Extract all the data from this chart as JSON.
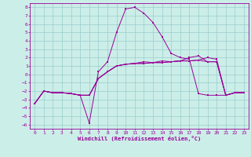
{
  "xlabel": "Windchill (Refroidissement éolien,°C)",
  "bg_color": "#cceee8",
  "grid_color": "#99cccc",
  "line_color": "#990099",
  "xlim": [
    -0.5,
    23.5
  ],
  "ylim": [
    -6.5,
    8.5
  ],
  "xticks": [
    0,
    1,
    2,
    3,
    4,
    5,
    6,
    7,
    8,
    9,
    10,
    11,
    12,
    13,
    14,
    15,
    16,
    17,
    18,
    19,
    20,
    21,
    22,
    23
  ],
  "yticks": [
    -6,
    -5,
    -4,
    -3,
    -2,
    -1,
    0,
    1,
    2,
    3,
    4,
    5,
    6,
    7,
    8
  ],
  "line1_x": [
    0,
    1,
    2,
    3,
    4,
    5,
    6,
    7,
    8,
    9,
    10,
    11,
    12,
    13,
    14,
    15,
    16,
    17,
    18,
    19,
    20,
    21,
    22,
    23
  ],
  "line1_y": [
    -3.5,
    -2.0,
    -2.2,
    -2.2,
    -2.3,
    -2.5,
    -2.5,
    -0.5,
    0.3,
    1.0,
    1.2,
    1.3,
    1.3,
    1.4,
    1.4,
    1.5,
    1.6,
    1.6,
    1.7,
    1.5,
    1.5,
    -2.5,
    -2.2,
    -2.2
  ],
  "line2_x": [
    0,
    1,
    2,
    3,
    4,
    5,
    6,
    7,
    8,
    9,
    10,
    11,
    12,
    13,
    14,
    15,
    16,
    17,
    18,
    19,
    20,
    21,
    22,
    23
  ],
  "line2_y": [
    -3.5,
    -2.0,
    -2.2,
    -2.2,
    -2.3,
    -2.5,
    -5.8,
    0.3,
    1.5,
    5.0,
    7.8,
    8.0,
    7.3,
    6.2,
    4.5,
    2.5,
    2.0,
    1.8,
    -2.3,
    -2.5,
    -2.5,
    -2.5,
    -2.2,
    -2.2
  ],
  "line3_x": [
    0,
    1,
    2,
    3,
    4,
    5,
    6,
    7,
    8,
    9,
    10,
    11,
    12,
    13,
    14,
    15,
    16,
    17,
    18,
    19,
    20,
    21,
    22,
    23
  ],
  "line3_y": [
    -3.5,
    -2.0,
    -2.2,
    -2.2,
    -2.3,
    -2.5,
    -2.5,
    -0.5,
    0.3,
    1.0,
    1.2,
    1.3,
    1.3,
    1.4,
    1.4,
    1.5,
    1.6,
    1.6,
    1.7,
    2.0,
    1.8,
    -2.5,
    -2.2,
    -2.2
  ],
  "line4_x": [
    0,
    1,
    2,
    3,
    4,
    5,
    6,
    7,
    8,
    9,
    10,
    11,
    12,
    13,
    14,
    15,
    16,
    17,
    18,
    19,
    20,
    21,
    22,
    23
  ],
  "line4_y": [
    -3.5,
    -2.0,
    -2.2,
    -2.2,
    -2.3,
    -2.5,
    -2.5,
    -0.5,
    0.3,
    1.0,
    1.2,
    1.3,
    1.5,
    1.4,
    1.6,
    1.5,
    1.6,
    2.0,
    2.2,
    1.5,
    1.5,
    -2.5,
    -2.2,
    -2.2
  ]
}
